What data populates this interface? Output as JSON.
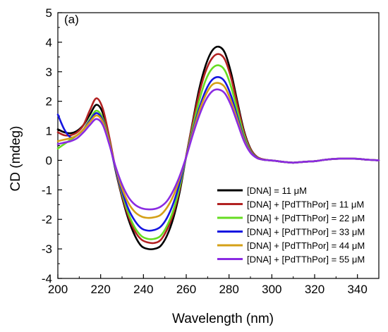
{
  "chart_data": {
    "type": "line",
    "panel_label": "(a)",
    "xlabel": "Wavelength (nm)",
    "ylabel": "CD (mdeg)",
    "xlim": [
      200,
      350
    ],
    "ylim": [
      -4,
      5
    ],
    "xticks": [
      200,
      220,
      240,
      260,
      280,
      300,
      320,
      340
    ],
    "yticks": [
      -4,
      -3,
      -2,
      -1,
      0,
      1,
      2,
      3,
      4,
      5
    ],
    "grid": false,
    "legend_position": "bottom-right",
    "series": [
      {
        "name": "[DNA] = 11 μM",
        "color": "#000000",
        "x": [
          200,
          203,
          206,
          209,
          212,
          215,
          218,
          221,
          224,
          227,
          230,
          233,
          236,
          239,
          242,
          245,
          248,
          251,
          254,
          257,
          260,
          263,
          266,
          269,
          272,
          275,
          278,
          281,
          284,
          287,
          290,
          293,
          296,
          299,
          302,
          305,
          310,
          315,
          320,
          325,
          330,
          335,
          340,
          345,
          350
        ],
        "y": [
          1.05,
          0.95,
          0.92,
          1.0,
          1.2,
          1.55,
          1.88,
          1.6,
          0.7,
          -0.35,
          -1.25,
          -2.0,
          -2.55,
          -2.9,
          -3.0,
          -3.0,
          -2.9,
          -2.55,
          -1.95,
          -1.05,
          0.15,
          1.3,
          2.4,
          3.2,
          3.7,
          3.85,
          3.65,
          2.95,
          1.95,
          1.0,
          0.4,
          0.12,
          0.03,
          0.0,
          -0.02,
          -0.05,
          -0.08,
          -0.05,
          -0.03,
          0.02,
          0.05,
          0.06,
          0.05,
          0.02,
          0.0
        ]
      },
      {
        "name": "[DNA] + [PdTThPor] = 11 μM",
        "color": "#b22222",
        "x": [
          200,
          203,
          206,
          209,
          212,
          215,
          218,
          221,
          224,
          227,
          230,
          233,
          236,
          239,
          242,
          245,
          248,
          251,
          254,
          257,
          260,
          263,
          266,
          269,
          272,
          275,
          278,
          281,
          284,
          287,
          290,
          293,
          296,
          299,
          302,
          305,
          310,
          315,
          320,
          325,
          330,
          335,
          340,
          345,
          350
        ],
        "y": [
          0.95,
          0.85,
          0.85,
          0.95,
          1.2,
          1.7,
          2.1,
          1.75,
          0.8,
          -0.3,
          -1.2,
          -1.9,
          -2.4,
          -2.68,
          -2.78,
          -2.8,
          -2.7,
          -2.35,
          -1.8,
          -0.95,
          0.15,
          1.25,
          2.25,
          3.0,
          3.45,
          3.6,
          3.42,
          2.78,
          1.85,
          0.95,
          0.38,
          0.12,
          0.03,
          0.0,
          -0.02,
          -0.05,
          -0.08,
          -0.05,
          -0.03,
          0.02,
          0.05,
          0.06,
          0.05,
          0.02,
          0.0
        ]
      },
      {
        "name": "[DNA] + [PdTThPor] = 22 μM",
        "color": "#66dd22",
        "x": [
          200,
          203,
          206,
          209,
          212,
          215,
          218,
          221,
          224,
          227,
          230,
          233,
          236,
          239,
          242,
          245,
          248,
          251,
          254,
          257,
          260,
          263,
          266,
          269,
          272,
          275,
          278,
          281,
          284,
          287,
          290,
          293,
          296,
          299,
          302,
          305,
          310,
          315,
          320,
          325,
          330,
          335,
          340,
          345,
          350
        ],
        "y": [
          0.4,
          0.55,
          0.7,
          0.85,
          1.05,
          1.4,
          1.68,
          1.42,
          0.65,
          -0.3,
          -1.12,
          -1.8,
          -2.28,
          -2.56,
          -2.66,
          -2.66,
          -2.56,
          -2.22,
          -1.68,
          -0.88,
          0.12,
          1.1,
          2.0,
          2.7,
          3.1,
          3.22,
          3.05,
          2.48,
          1.65,
          0.85,
          0.33,
          0.1,
          0.02,
          0.0,
          -0.02,
          -0.05,
          -0.08,
          -0.05,
          -0.03,
          0.02,
          0.05,
          0.06,
          0.05,
          0.02,
          0.0
        ]
      },
      {
        "name": "[DNA] + [PdTThPor] = 33 μM",
        "color": "#1515e0",
        "x": [
          200,
          203,
          206,
          209,
          212,
          215,
          218,
          221,
          224,
          227,
          230,
          233,
          236,
          239,
          242,
          245,
          248,
          251,
          254,
          257,
          260,
          263,
          266,
          269,
          272,
          275,
          278,
          281,
          284,
          287,
          290,
          293,
          296,
          299,
          302,
          305,
          310,
          315,
          320,
          325,
          330,
          335,
          340,
          345,
          350
        ],
        "y": [
          1.55,
          1.05,
          0.78,
          0.85,
          1.05,
          1.35,
          1.6,
          1.35,
          0.6,
          -0.3,
          -1.05,
          -1.65,
          -2.05,
          -2.3,
          -2.38,
          -2.36,
          -2.25,
          -1.95,
          -1.45,
          -0.75,
          0.12,
          0.98,
          1.75,
          2.35,
          2.72,
          2.82,
          2.67,
          2.18,
          1.45,
          0.75,
          0.3,
          0.09,
          0.02,
          0.0,
          -0.02,
          -0.05,
          -0.08,
          -0.05,
          -0.03,
          0.02,
          0.05,
          0.06,
          0.05,
          0.02,
          0.0
        ]
      },
      {
        "name": "[DNA] + [PdTThPor] = 44 μM",
        "color": "#d4a017",
        "x": [
          200,
          203,
          206,
          209,
          212,
          215,
          218,
          221,
          224,
          227,
          230,
          233,
          236,
          239,
          242,
          245,
          248,
          251,
          254,
          257,
          260,
          263,
          266,
          269,
          272,
          275,
          278,
          281,
          284,
          287,
          290,
          293,
          296,
          299,
          302,
          305,
          310,
          315,
          320,
          325,
          330,
          335,
          340,
          345,
          350
        ],
        "y": [
          0.65,
          0.7,
          0.75,
          0.85,
          1.05,
          1.3,
          1.52,
          1.3,
          0.6,
          -0.25,
          -0.95,
          -1.45,
          -1.75,
          -1.9,
          -1.95,
          -1.93,
          -1.85,
          -1.6,
          -1.2,
          -0.6,
          0.12,
          0.92,
          1.65,
          2.2,
          2.55,
          2.62,
          2.48,
          2.0,
          1.35,
          0.7,
          0.28,
          0.08,
          0.02,
          0.0,
          -0.02,
          -0.05,
          -0.08,
          -0.05,
          -0.03,
          0.02,
          0.05,
          0.06,
          0.05,
          0.02,
          0.0
        ]
      },
      {
        "name": "[DNA] + [PdTThPor] = 55 μM",
        "color": "#8a2be2",
        "x": [
          200,
          203,
          206,
          209,
          212,
          215,
          218,
          221,
          224,
          227,
          230,
          233,
          236,
          239,
          242,
          245,
          248,
          251,
          254,
          257,
          260,
          263,
          266,
          269,
          272,
          275,
          278,
          281,
          284,
          287,
          290,
          293,
          296,
          299,
          302,
          305,
          310,
          315,
          320,
          325,
          330,
          335,
          340,
          345,
          350
        ],
        "y": [
          0.55,
          0.6,
          0.65,
          0.75,
          0.95,
          1.2,
          1.4,
          1.2,
          0.55,
          -0.22,
          -0.82,
          -1.25,
          -1.5,
          -1.62,
          -1.66,
          -1.65,
          -1.57,
          -1.38,
          -1.02,
          -0.52,
          0.12,
          0.85,
          1.5,
          2.02,
          2.33,
          2.4,
          2.27,
          1.85,
          1.25,
          0.65,
          0.26,
          0.08,
          0.02,
          0.0,
          -0.02,
          -0.05,
          -0.08,
          -0.05,
          -0.03,
          0.02,
          0.05,
          0.06,
          0.05,
          0.02,
          0.0
        ]
      }
    ]
  }
}
